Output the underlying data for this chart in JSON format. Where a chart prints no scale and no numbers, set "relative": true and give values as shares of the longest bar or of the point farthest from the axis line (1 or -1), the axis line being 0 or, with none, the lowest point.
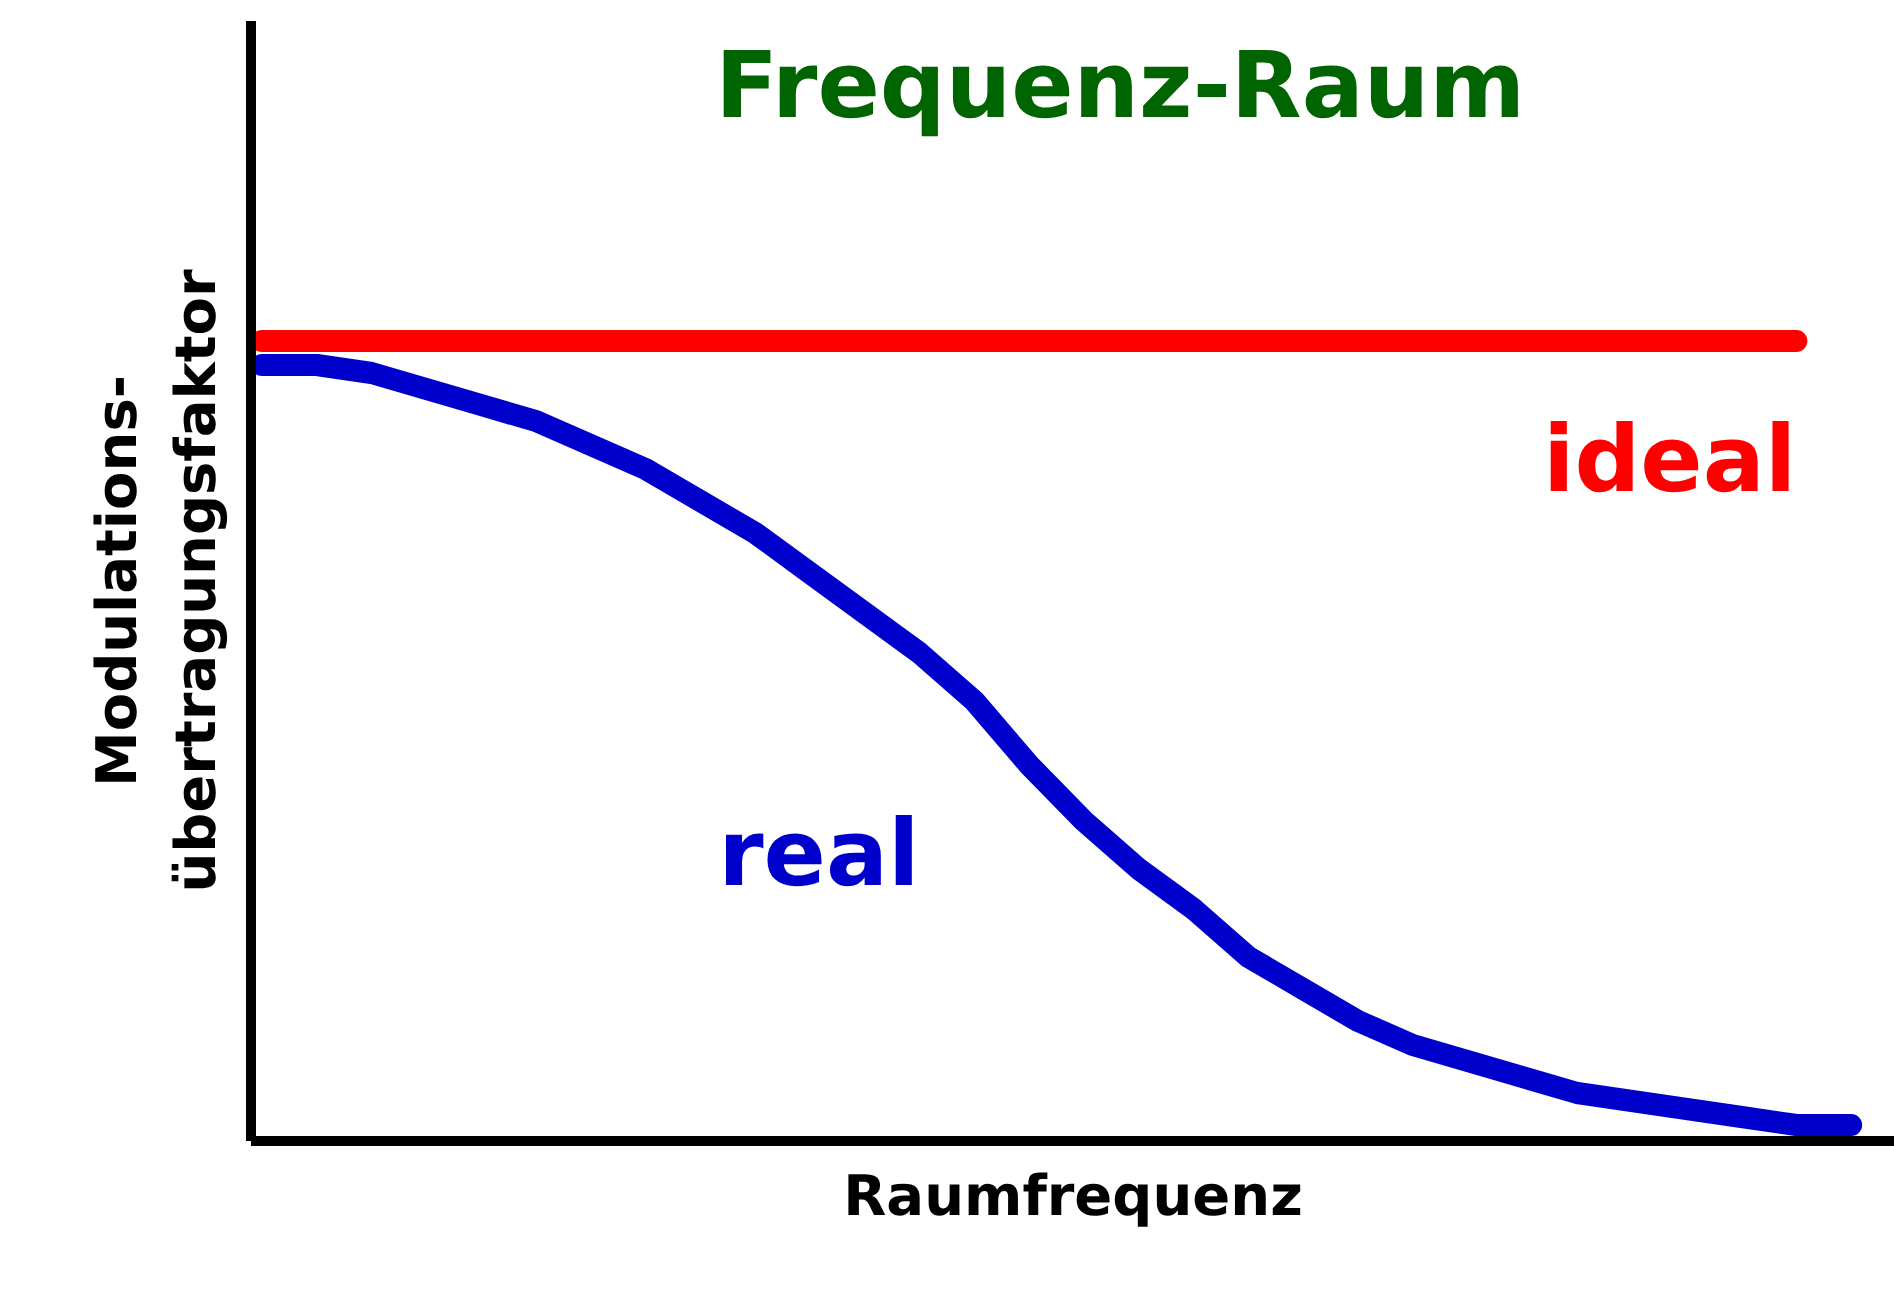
{
  "chart_data": {
    "type": "line",
    "relative": true,
    "title": "Frequenz-Raum",
    "xlabel": "Raumfrequenz",
    "ylabel": "Modulations-\nübertragungsfaktor",
    "categories": [
      null,
      null,
      null,
      null,
      null,
      null,
      null,
      null,
      null,
      null,
      null,
      null,
      null,
      null,
      null,
      null,
      null,
      null,
      null,
      null,
      null,
      null,
      null,
      null,
      null,
      null,
      null,
      null,
      null,
      null
    ],
    "series": [
      {
        "name": "ideal",
        "color": "#ff0000",
        "values": [
          1,
          1,
          1,
          1,
          1,
          1,
          1,
          1,
          1,
          1,
          1,
          1,
          1,
          1,
          1,
          1,
          1,
          1,
          1,
          1,
          1,
          1,
          1,
          1,
          1,
          1,
          1,
          1,
          1,
          null
        ]
      },
      {
        "name": "real",
        "color": "#0000cc",
        "values": [
          0.97,
          0.97,
          0.96,
          0.94,
          0.92,
          0.9,
          0.87,
          0.84,
          0.8,
          0.76,
          0.71,
          0.66,
          0.61,
          0.55,
          0.47,
          0.4,
          0.34,
          0.29,
          0.23,
          0.19,
          0.15,
          0.12,
          0.1,
          0.08,
          0.06,
          0.05,
          0.04,
          0.03,
          0.02,
          0.02
        ]
      }
    ],
    "grid": false
  }
}
